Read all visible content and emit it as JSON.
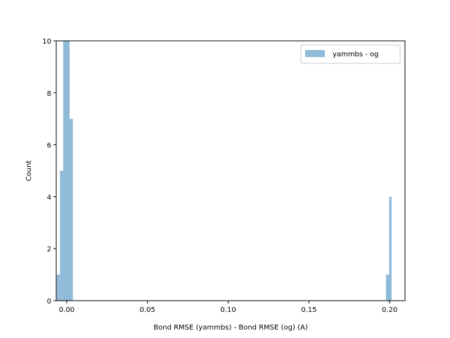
{
  "chart_data": {
    "type": "bar",
    "subtype": "histogram",
    "title": "",
    "xlabel": "Bond RMSE (yammbs) - Bond RMSE (og) (A)",
    "ylabel": "Count",
    "xlim": [
      -0.0065,
      0.2095
    ],
    "ylim": [
      0,
      10
    ],
    "xticks": [
      0.0,
      0.05,
      0.1,
      0.15,
      0.2
    ],
    "xtick_labels": [
      "0.00",
      "0.05",
      "0.10",
      "0.15",
      "0.20"
    ],
    "yticks": [
      0,
      2,
      4,
      6,
      8,
      10
    ],
    "ytick_labels": [
      "0",
      "2",
      "4",
      "6",
      "8",
      "10"
    ],
    "grid": false,
    "legend_position": "top-right",
    "series": [
      {
        "name": "yammbs - og",
        "color": "#1f77b4",
        "alpha": 0.5,
        "bins": [
          {
            "x0": -0.0062,
            "x1": -0.0042,
            "count": 1
          },
          {
            "x0": -0.0042,
            "x1": -0.0022,
            "count": 5
          },
          {
            "x0": -0.0022,
            "x1": 0.0018,
            "count": 10
          },
          {
            "x0": 0.0018,
            "x1": 0.0038,
            "count": 7
          },
          {
            "x0": 0.1977,
            "x1": 0.1997,
            "count": 1
          },
          {
            "x0": 0.1997,
            "x1": 0.2012,
            "count": 4
          }
        ]
      }
    ]
  }
}
